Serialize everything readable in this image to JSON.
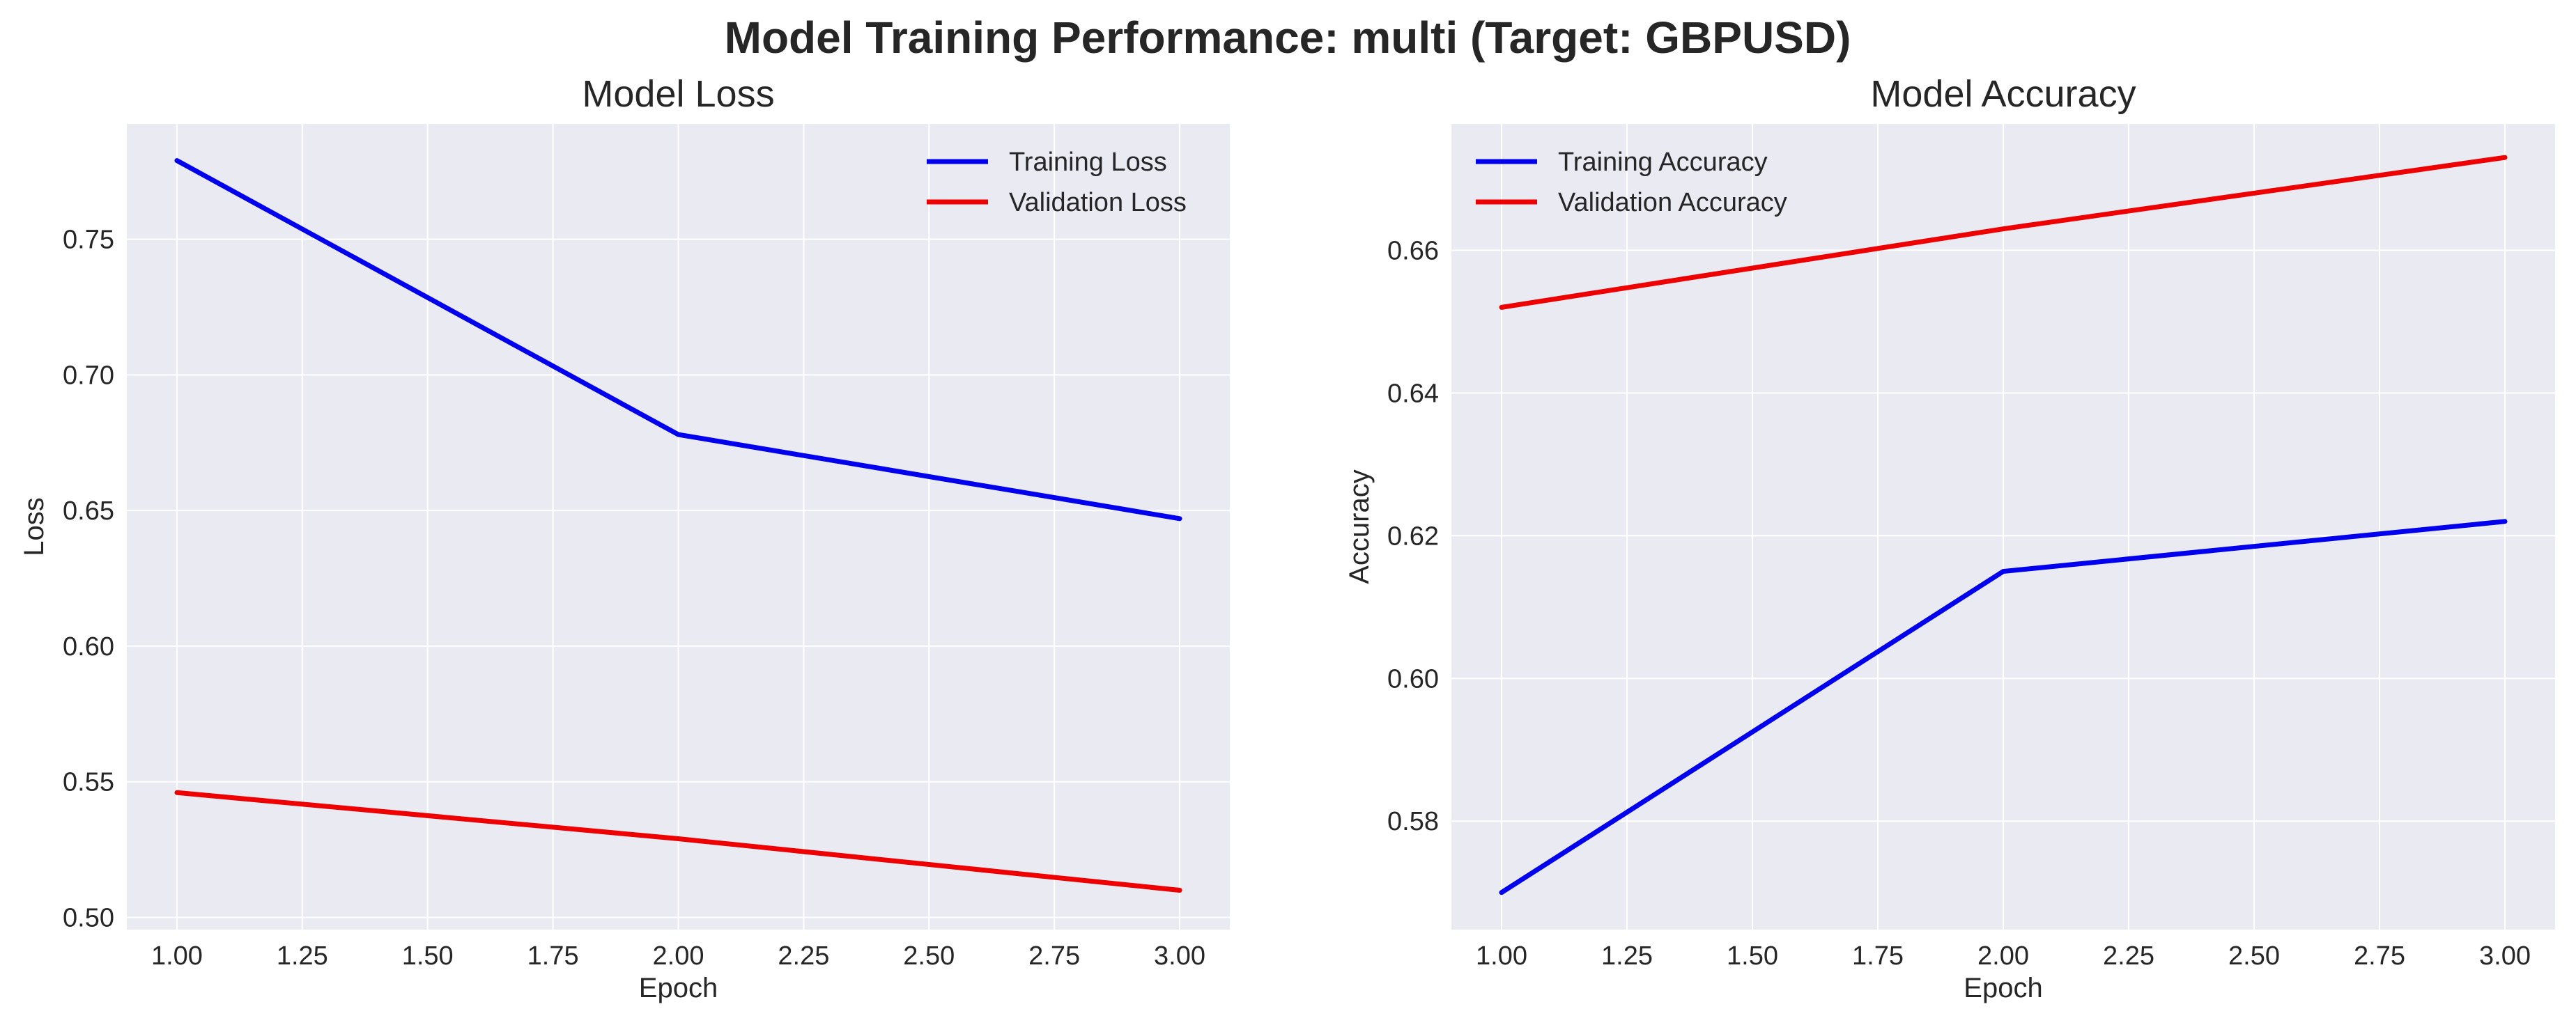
{
  "figure": {
    "title": "Model Training Performance: multi (Target: GBPUSD)"
  },
  "chart_data": [
    {
      "type": "line",
      "title": "Model Loss",
      "xlabel": "Epoch",
      "ylabel": "Loss",
      "x": [
        1,
        2,
        3
      ],
      "xlim": [
        0.9,
        3.1
      ],
      "ylim": [
        0.4955,
        0.7925
      ],
      "xticks": [
        "1.00",
        "1.25",
        "1.50",
        "1.75",
        "2.00",
        "2.25",
        "2.50",
        "2.75",
        "3.00"
      ],
      "yticks": [
        "0.50",
        "0.55",
        "0.60",
        "0.65",
        "0.70",
        "0.75"
      ],
      "grid": true,
      "legend": "upper right",
      "series": [
        {
          "name": "Training Loss",
          "color": "#0000ee",
          "values": [
            0.779,
            0.678,
            0.647
          ]
        },
        {
          "name": "Validation Loss",
          "color": "#ee0000",
          "values": [
            0.546,
            0.529,
            0.51
          ]
        }
      ]
    },
    {
      "type": "line",
      "title": "Model Accuracy",
      "xlabel": "Epoch",
      "ylabel": "Accuracy",
      "x": [
        1,
        2,
        3
      ],
      "xlim": [
        0.9,
        3.1
      ],
      "ylim": [
        0.5648,
        0.6777
      ],
      "xticks": [
        "1.00",
        "1.25",
        "1.50",
        "1.75",
        "2.00",
        "2.25",
        "2.50",
        "2.75",
        "3.00"
      ],
      "yticks": [
        "0.58",
        "0.60",
        "0.62",
        "0.64",
        "0.66"
      ],
      "grid": true,
      "legend": "upper left",
      "series": [
        {
          "name": "Training Accuracy",
          "color": "#0000ee",
          "values": [
            0.57,
            0.615,
            0.622
          ]
        },
        {
          "name": "Validation Accuracy",
          "color": "#ee0000",
          "values": [
            0.652,
            0.663,
            0.673
          ]
        }
      ]
    }
  ]
}
